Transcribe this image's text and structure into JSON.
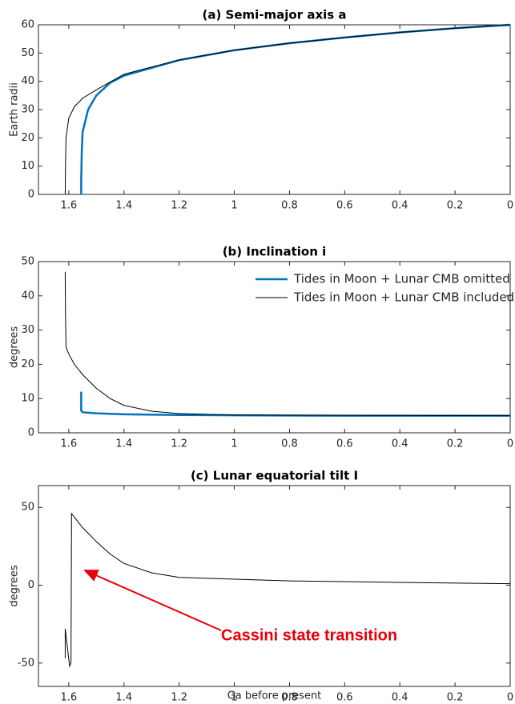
{
  "chart_data": [
    {
      "type": "line",
      "title": "(a) Semi-major axis a",
      "y_label": "Earth radii",
      "xlim": [
        1.71,
        0
      ],
      "xticks": [
        1.6,
        1.4,
        1.2,
        1,
        0.8,
        0.6,
        0.4,
        0.2,
        0
      ],
      "ylim": [
        0,
        60
      ],
      "yticks": [
        0,
        10,
        20,
        30,
        40,
        50,
        60
      ],
      "series": [
        {
          "color": "#0072bd",
          "width": 2.5,
          "x": [
            0,
            0.2,
            0.4,
            0.6,
            0.8,
            1,
            1.2,
            1.4,
            1.45,
            1.5,
            1.53,
            1.55,
            1.553,
            1.555,
            1.555
          ],
          "values": [
            60,
            58.8,
            57.3,
            55.5,
            53.5,
            51,
            47.5,
            42,
            39.5,
            35,
            30,
            22,
            15,
            5,
            0
          ]
        },
        {
          "color": "#000000",
          "width": 1,
          "x": [
            0,
            0.2,
            0.4,
            0.6,
            0.8,
            1,
            1.2,
            1.35,
            1.4,
            1.5,
            1.55,
            1.58,
            1.6,
            1.61,
            1.612,
            1.613
          ],
          "values": [
            60,
            58.8,
            57.3,
            55.5,
            53.5,
            51,
            47.6,
            43.8,
            42.5,
            37,
            34,
            31,
            27,
            20,
            10,
            0
          ]
        }
      ]
    },
    {
      "type": "line",
      "title": "(b) Inclination i",
      "y_label": "degrees",
      "xlim": [
        1.71,
        0
      ],
      "xticks": [
        1.6,
        1.4,
        1.2,
        1,
        0.8,
        0.6,
        0.4,
        0.2,
        0
      ],
      "ylim": [
        0,
        50
      ],
      "yticks": [
        0,
        10,
        20,
        30,
        40,
        50
      ],
      "legend": "upper right",
      "series": [
        {
          "name": "Tides in Moon + Lunar CMB omitted",
          "color": "#0072bd",
          "width": 2.5,
          "x": [
            0,
            0.6,
            1,
            1.2,
            1.4,
            1.5,
            1.55,
            1.555,
            1.555
          ],
          "values": [
            5,
            5,
            5.1,
            5.2,
            5.4,
            5.7,
            6,
            6.5,
            12
          ]
        },
        {
          "name": "Tides in Moon + Lunar CMB included",
          "color": "#000000",
          "width": 1,
          "x": [
            0,
            0.6,
            1,
            1.2,
            1.3,
            1.4,
            1.45,
            1.5,
            1.55,
            1.58,
            1.6,
            1.61,
            1.612,
            1.613
          ],
          "values": [
            5,
            5.1,
            5.2,
            5.6,
            6.3,
            8,
            10,
            13,
            17,
            20,
            23,
            25,
            35,
            47
          ]
        }
      ]
    },
    {
      "type": "line",
      "title": "(c) Lunar equatorial tilt I",
      "y_label": "degrees",
      "x_label": "Ga before present",
      "xlim": [
        1.71,
        0
      ],
      "xticks": [
        1.6,
        1.4,
        1.2,
        1,
        0.8,
        0.6,
        0.4,
        0.2,
        0
      ],
      "ylim": [
        -65,
        64
      ],
      "yticks": [
        -50,
        0,
        50
      ],
      "annotation": "Cassini state transition",
      "series": [
        {
          "color": "#000000",
          "width": 1,
          "x": [
            0,
            0.4,
            0.8,
            1.2,
            1.3,
            1.4,
            1.45,
            1.5,
            1.55,
            1.59,
            1.592,
            1.597,
            1.613,
            1.613
          ],
          "values": [
            1,
            1.8,
            2.8,
            5,
            8,
            14,
            20,
            28,
            37,
            46,
            -50,
            -52,
            -28,
            -47
          ]
        }
      ]
    }
  ]
}
